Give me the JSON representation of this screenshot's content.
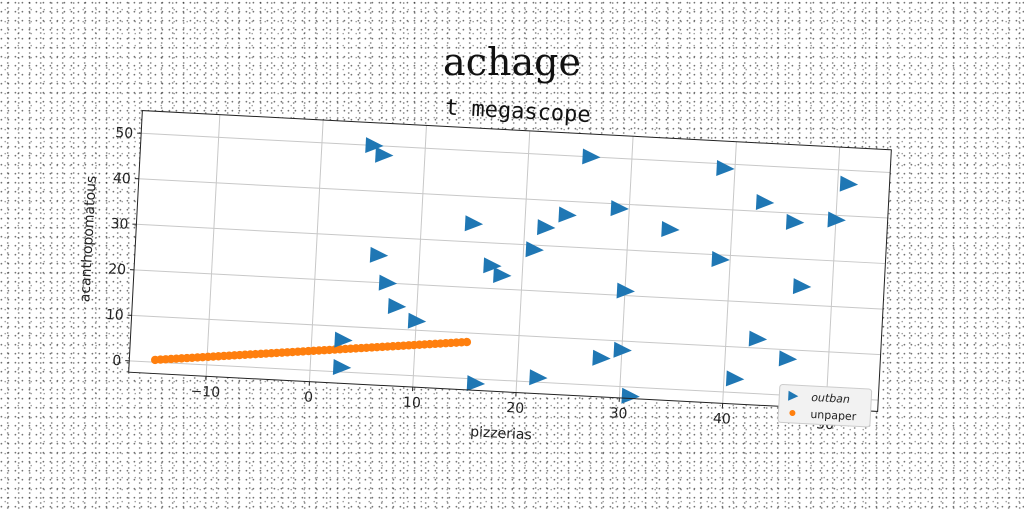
{
  "suptitle": "achage",
  "chart_data": {
    "type": "scatter",
    "title": "t megascope",
    "xlabel": "pizzerias",
    "ylabel": "acanthopomatous",
    "xlim": [
      -17.5,
      55
    ],
    "ylim": [
      -2.5,
      55
    ],
    "xticks": [
      -10,
      0,
      10,
      20,
      30,
      40,
      50
    ],
    "yticks": [
      0,
      10,
      20,
      30,
      40,
      50
    ],
    "xtick_labels": [
      "−10",
      "0",
      "10",
      "20",
      "30",
      "40",
      "50"
    ],
    "ytick_labels": [
      "0",
      "10",
      "20",
      "30",
      "40",
      "50"
    ],
    "grid": true,
    "legend_position": "lower-right",
    "rotation_deg": 3,
    "series": [
      {
        "name": "outban",
        "marker": "triangle-right",
        "color": "#1f77b4",
        "points": [
          [
            5,
            50
          ],
          [
            6,
            48
          ],
          [
            26,
            50
          ],
          [
            39,
            49
          ],
          [
            51,
            47
          ],
          [
            43,
            42
          ],
          [
            46,
            38
          ],
          [
            50,
            39
          ],
          [
            29,
            39
          ],
          [
            24,
            37
          ],
          [
            22,
            34
          ],
          [
            34,
            35
          ],
          [
            15,
            34
          ],
          [
            21,
            29
          ],
          [
            39,
            29
          ],
          [
            6,
            26
          ],
          [
            17,
            25
          ],
          [
            18,
            23
          ],
          [
            47,
            24
          ],
          [
            30,
            21
          ],
          [
            7,
            20
          ],
          [
            8,
            15
          ],
          [
            10,
            12
          ],
          [
            43,
            12
          ],
          [
            30,
            8
          ],
          [
            28,
            6
          ],
          [
            46,
            8
          ],
          [
            3,
            7
          ],
          [
            3,
            1
          ],
          [
            16,
            -1
          ],
          [
            22,
            1
          ],
          [
            31,
            -2
          ],
          [
            41,
            3
          ]
        ]
      },
      {
        "name": "unpaper",
        "marker": "circle",
        "color": "#ff7f0e",
        "x_range": [
          -15,
          15
        ],
        "y_range": [
          0.5,
          8
        ],
        "n_points": 60
      }
    ]
  }
}
